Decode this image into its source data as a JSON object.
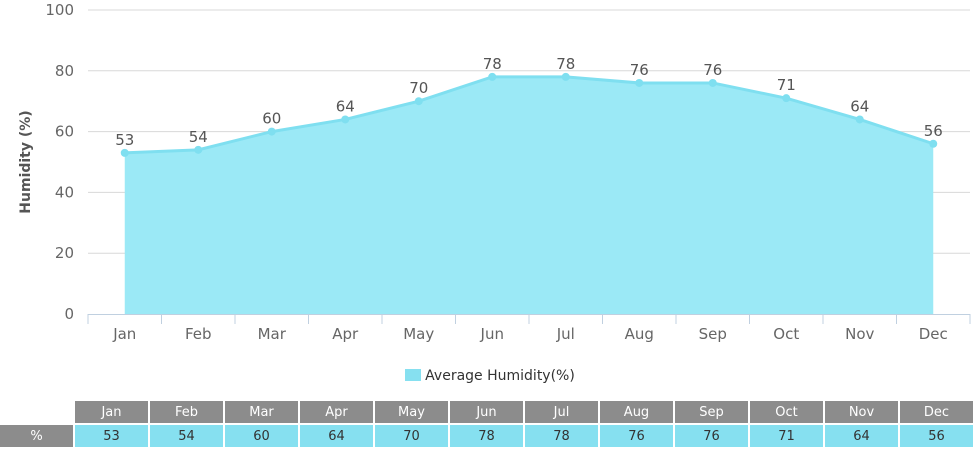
{
  "chart_data": {
    "type": "area",
    "title": "",
    "ylabel": "Humidity (%)",
    "xlabel": "",
    "categories": [
      "Jan",
      "Feb",
      "Mar",
      "Apr",
      "May",
      "Jun",
      "Jul",
      "Aug",
      "Sep",
      "Oct",
      "Nov",
      "Dec"
    ],
    "series": [
      {
        "name": "Average Humidity(%)",
        "values": [
          53,
          54,
          60,
          64,
          70,
          78,
          78,
          76,
          76,
          71,
          64,
          56
        ]
      }
    ],
    "ylim": [
      0,
      100
    ],
    "yticks": [
      0,
      20,
      40,
      60,
      80,
      100
    ],
    "grid": true,
    "legend": "bottom-center",
    "data_labels": true,
    "colors": {
      "area_fill": "#9be9f6",
      "line": "#7fdff0",
      "grid": "#d8d8d8",
      "table_header": "#8c8c8c"
    }
  },
  "legend": {
    "label": "Average Humidity(%)"
  },
  "table": {
    "row_label": "%",
    "months": [
      "Jan",
      "Feb",
      "Mar",
      "Apr",
      "May",
      "Jun",
      "Jul",
      "Aug",
      "Sep",
      "Oct",
      "Nov",
      "Dec"
    ],
    "values": [
      "53",
      "54",
      "60",
      "64",
      "70",
      "78",
      "78",
      "76",
      "76",
      "71",
      "64",
      "56"
    ]
  }
}
